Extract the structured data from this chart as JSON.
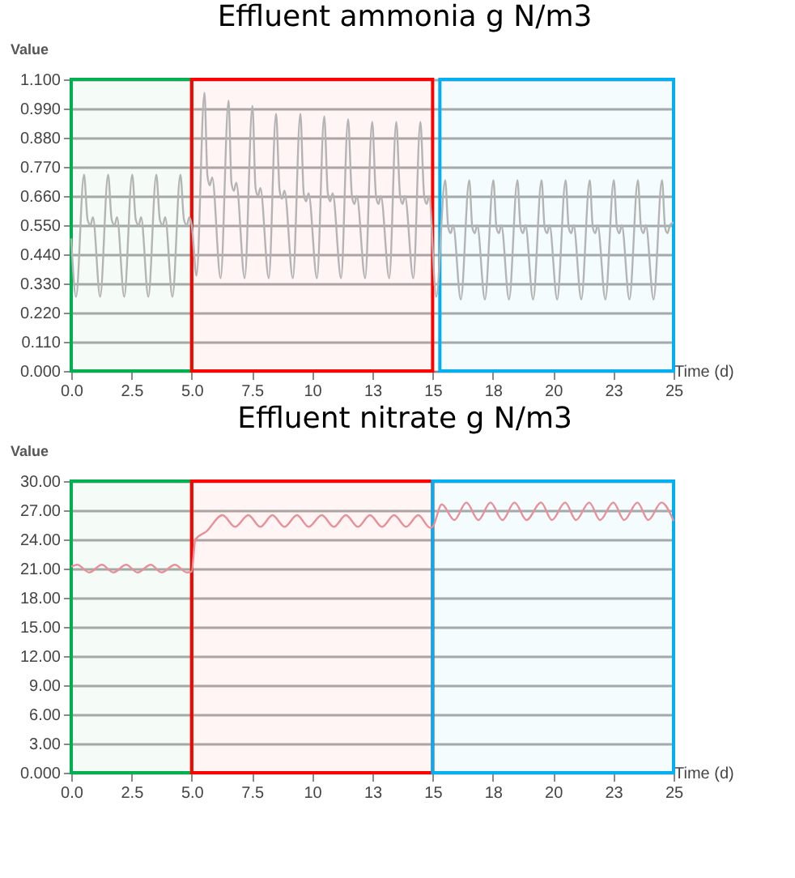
{
  "chart_data": [
    {
      "type": "line",
      "title": "Effluent ammonia g N/m3",
      "xlabel": "Time (d)",
      "ylabel": "Value",
      "x": [
        0,
        0.2,
        0.53,
        0.68,
        0.8,
        0.9,
        1.2,
        1.53,
        1.68,
        1.8,
        1.9,
        2.2,
        2.53,
        2.68,
        2.8,
        2.9,
        3.2,
        3.53,
        3.68,
        3.8,
        3.9,
        4.2,
        4.53,
        4.68,
        4.8,
        4.9,
        5.0,
        5.2,
        5.53,
        5.65,
        5.75,
        5.85,
        6.2,
        6.53,
        6.65,
        6.75,
        6.85,
        7.2,
        7.52,
        7.65,
        7.75,
        7.85,
        8.2,
        8.5,
        8.65,
        8.75,
        8.85,
        9.2,
        9.51,
        9.65,
        9.75,
        9.85,
        10.2,
        10.5,
        10.65,
        10.75,
        10.85,
        11.2,
        11.49,
        11.65,
        11.75,
        11.85,
        12.2,
        12.49,
        12.65,
        12.75,
        12.85,
        13.2,
        13.49,
        13.65,
        13.75,
        13.85,
        14.2,
        14.49,
        14.65,
        14.75,
        14.85,
        15.15,
        15.52,
        15.65,
        15.75,
        15.85,
        16.17,
        16.52,
        16.65,
        16.75,
        16.85,
        17.17,
        17.52,
        17.65,
        17.75,
        17.85,
        18.17,
        18.52,
        18.65,
        18.75,
        18.85,
        19.17,
        19.52,
        19.65,
        19.75,
        19.85,
        20.17,
        20.52,
        20.65,
        20.75,
        20.85,
        21.17,
        21.52,
        21.65,
        21.75,
        21.85,
        22.17,
        22.52,
        22.65,
        22.75,
        22.85,
        23.17,
        23.52,
        23.65,
        23.75,
        23.85,
        24.17,
        24.52,
        24.65,
        24.75,
        24.85,
        25
      ],
      "series": [
        {
          "color": "#b4b4b4",
          "values": [
            0.5,
            0.28,
            0.74,
            0.57,
            0.55,
            0.58,
            0.28,
            0.74,
            0.57,
            0.55,
            0.58,
            0.28,
            0.74,
            0.57,
            0.55,
            0.58,
            0.28,
            0.74,
            0.57,
            0.55,
            0.58,
            0.28,
            0.74,
            0.57,
            0.55,
            0.58,
            0.55,
            0.36,
            1.05,
            0.74,
            0.7,
            0.73,
            0.35,
            1.02,
            0.71,
            0.68,
            0.71,
            0.35,
            1.0,
            0.69,
            0.66,
            0.69,
            0.35,
            0.97,
            0.68,
            0.65,
            0.68,
            0.35,
            0.97,
            0.67,
            0.64,
            0.67,
            0.35,
            0.96,
            0.67,
            0.64,
            0.67,
            0.35,
            0.95,
            0.66,
            0.63,
            0.66,
            0.35,
            0.94,
            0.66,
            0.63,
            0.66,
            0.35,
            0.94,
            0.66,
            0.63,
            0.66,
            0.35,
            0.94,
            0.66,
            0.63,
            0.66,
            0.28,
            0.72,
            0.54,
            0.52,
            0.55,
            0.27,
            0.72,
            0.54,
            0.52,
            0.55,
            0.27,
            0.72,
            0.54,
            0.52,
            0.55,
            0.27,
            0.72,
            0.54,
            0.52,
            0.55,
            0.27,
            0.72,
            0.54,
            0.52,
            0.55,
            0.27,
            0.72,
            0.54,
            0.52,
            0.55,
            0.27,
            0.72,
            0.54,
            0.52,
            0.55,
            0.27,
            0.72,
            0.54,
            0.52,
            0.55,
            0.27,
            0.72,
            0.54,
            0.52,
            0.55,
            0.27,
            0.72,
            0.54,
            0.52,
            0.55,
            0.56
          ]
        }
      ],
      "xlim": [
        0,
        25
      ],
      "xticks": [
        {
          "value": 0,
          "label": "0.0"
        },
        {
          "value": 2.5,
          "label": "2.5"
        },
        {
          "value": 5,
          "label": "5.0"
        },
        {
          "value": 7.5,
          "label": "7.5"
        },
        {
          "value": 10,
          "label": "10"
        },
        {
          "value": 12.5,
          "label": "13"
        },
        {
          "value": 15,
          "label": "15"
        },
        {
          "value": 17.5,
          "label": "18"
        },
        {
          "value": 20,
          "label": "20"
        },
        {
          "value": 22.5,
          "label": "23"
        },
        {
          "value": 25,
          "label": "25"
        }
      ],
      "ylim": [
        0,
        1.1
      ],
      "yticks": [
        {
          "value": 0,
          "label": "0.000"
        },
        {
          "value": 0.11,
          "label": "0.110"
        },
        {
          "value": 0.22,
          "label": "0.220"
        },
        {
          "value": 0.33,
          "label": "0.330"
        },
        {
          "value": 0.44,
          "label": "0.440"
        },
        {
          "value": 0.55,
          "label": "0.550"
        },
        {
          "value": 0.66,
          "label": "0.660"
        },
        {
          "value": 0.77,
          "label": "0.770"
        },
        {
          "value": 0.88,
          "label": "0.880"
        },
        {
          "value": 0.99,
          "label": "0.990"
        },
        {
          "value": 1.1,
          "label": "1.100"
        }
      ],
      "grid": "y",
      "bands": [
        {
          "axis": "x",
          "from": 0,
          "to": 5,
          "color": "#00b050"
        },
        {
          "axis": "x",
          "from": 5,
          "to": 15,
          "color": "#ff0000"
        },
        {
          "axis": "x",
          "from": 15.3,
          "to": 25,
          "color": "#00b0f0"
        }
      ]
    },
    {
      "type": "line",
      "title": "Effluent nitrate g N/m3",
      "xlabel": "Time (d)",
      "ylabel": "Value",
      "x": [
        0,
        0.25,
        0.75,
        1.27,
        1.75,
        2.28,
        2.75,
        3.3,
        3.75,
        4.3,
        4.8,
        5.0,
        5.15,
        5.6,
        6.28,
        6.8,
        7.35,
        7.85,
        8.35,
        8.85,
        9.37,
        9.85,
        10.4,
        10.9,
        11.4,
        11.9,
        12.4,
        12.9,
        13.4,
        13.9,
        14.4,
        14.9,
        15.0,
        15.38,
        15.9,
        16.4,
        16.9,
        17.4,
        17.9,
        18.4,
        18.9,
        19.5,
        19.95,
        20.5,
        20.95,
        21.5,
        21.95,
        22.5,
        22.95,
        23.5,
        23.95,
        24.5,
        25
      ],
      "series": [
        {
          "color": "#e8909a",
          "values": [
            21.2,
            21.4,
            20.6,
            21.4,
            20.6,
            21.4,
            20.6,
            21.4,
            20.6,
            21.4,
            20.6,
            20.7,
            24.0,
            24.8,
            26.5,
            25.3,
            26.5,
            25.3,
            26.5,
            25.3,
            26.5,
            25.3,
            26.5,
            25.3,
            26.5,
            25.3,
            26.5,
            25.3,
            26.5,
            25.3,
            26.5,
            25.2,
            25.3,
            27.6,
            26.0,
            27.8,
            26.0,
            27.8,
            26.0,
            27.8,
            26.0,
            27.8,
            26.0,
            27.8,
            26.0,
            27.8,
            26.0,
            27.8,
            26.0,
            27.8,
            26.0,
            27.8,
            25.9
          ]
        }
      ],
      "xlim": [
        0,
        25
      ],
      "xticks": [
        {
          "value": 0,
          "label": "0.0"
        },
        {
          "value": 2.5,
          "label": "2.5"
        },
        {
          "value": 5,
          "label": "5.0"
        },
        {
          "value": 7.5,
          "label": "7.5"
        },
        {
          "value": 10,
          "label": "10"
        },
        {
          "value": 12.5,
          "label": "13"
        },
        {
          "value": 15,
          "label": "15"
        },
        {
          "value": 17.5,
          "label": "18"
        },
        {
          "value": 20,
          "label": "20"
        },
        {
          "value": 22.5,
          "label": "23"
        },
        {
          "value": 25,
          "label": "25"
        }
      ],
      "ylim": [
        0,
        30
      ],
      "yticks": [
        {
          "value": 0,
          "label": "0.000"
        },
        {
          "value": 3,
          "label": "3.00"
        },
        {
          "value": 6,
          "label": "6.00"
        },
        {
          "value": 9,
          "label": "9.00"
        },
        {
          "value": 12,
          "label": "12.00"
        },
        {
          "value": 15,
          "label": "15.00"
        },
        {
          "value": 18,
          "label": "18.00"
        },
        {
          "value": 21,
          "label": "21.00"
        },
        {
          "value": 24,
          "label": "24.00"
        },
        {
          "value": 27,
          "label": "27.00"
        },
        {
          "value": 30,
          "label": "30.00"
        }
      ],
      "grid": "y",
      "bands": [
        {
          "axis": "x",
          "from": 0,
          "to": 5,
          "color": "#00b050"
        },
        {
          "axis": "x",
          "from": 5,
          "to": 15,
          "color": "#ff0000"
        },
        {
          "axis": "x",
          "from": 15,
          "to": 25,
          "color": "#00b0f0"
        }
      ]
    }
  ]
}
